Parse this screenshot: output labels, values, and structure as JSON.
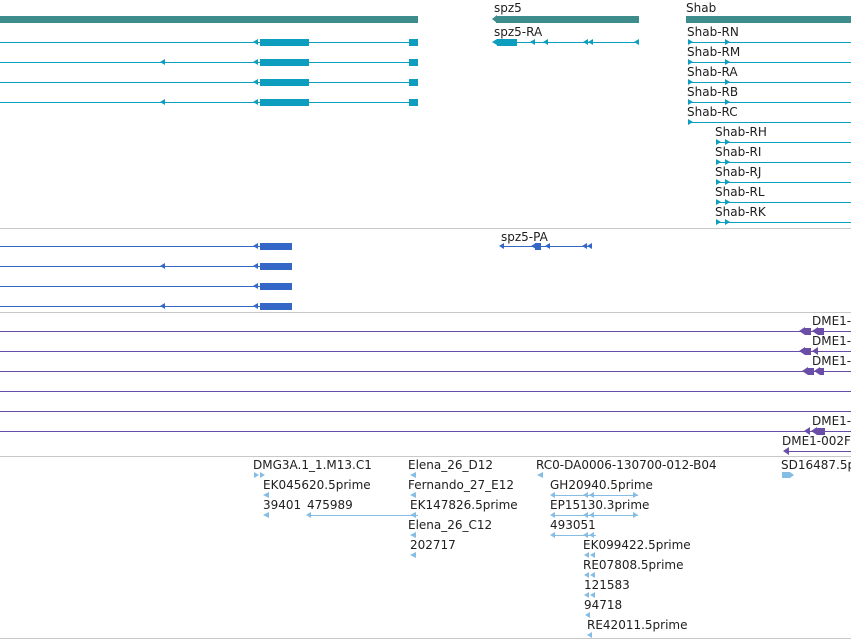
{
  "colors": {
    "gene": "#3f8c8c",
    "flybase_transcript": "#0d9dbf",
    "refseq": "#3467c6",
    "purple": "#6a4da6",
    "est": "#86bde4",
    "separator": "#c8c8c8"
  },
  "genes": {
    "spz5": "spz5",
    "shab": "Shab"
  },
  "transcripts": {
    "spz5_ra": "spz5-RA",
    "shab_rn": "Shab-RN",
    "shab_rm": "Shab-RM",
    "shab_ra": "Shab-RA",
    "shab_rb": "Shab-RB",
    "shab_rc": "Shab-RC",
    "shab_rh": "Shab-RH",
    "shab_ri": "Shab-RI",
    "shab_rj": "Shab-RJ",
    "shab_rl": "Shab-RL",
    "shab_rk": "Shab-RK"
  },
  "proteins": {
    "spz5_pa": "spz5-PA"
  },
  "purple_track": {
    "dme1_a": "DME1-",
    "dme1_b": "DME1-",
    "dme1_c": "DME1-",
    "dme1_d": "DME1-",
    "dme1_002": "DME1-002F"
  },
  "ests": {
    "dmg3a": "DMG3A.1_1.M13.C1",
    "ek045620": "EK045620.5prime",
    "n39401": "39401",
    "n475989": "475989",
    "elena_d12": "Elena_26_D12",
    "fernando": "Fernando_27_E12",
    "ek147826": "EK147826.5prime",
    "elena_c12": "Elena_26_C12",
    "n202717": "202717",
    "rc0": "RC0-DA0006-130700-012-B04",
    "gh20940": "GH20940.5prime",
    "ep15130": "EP15130.3prime",
    "n493051": "493051",
    "ek099422": "EK099422.5prime",
    "re07808": "RE07808.5prime",
    "n121583": "121583",
    "n94718": "94718",
    "re42011": "RE42011.5prime",
    "sd16487": "SD16487.5p"
  }
}
